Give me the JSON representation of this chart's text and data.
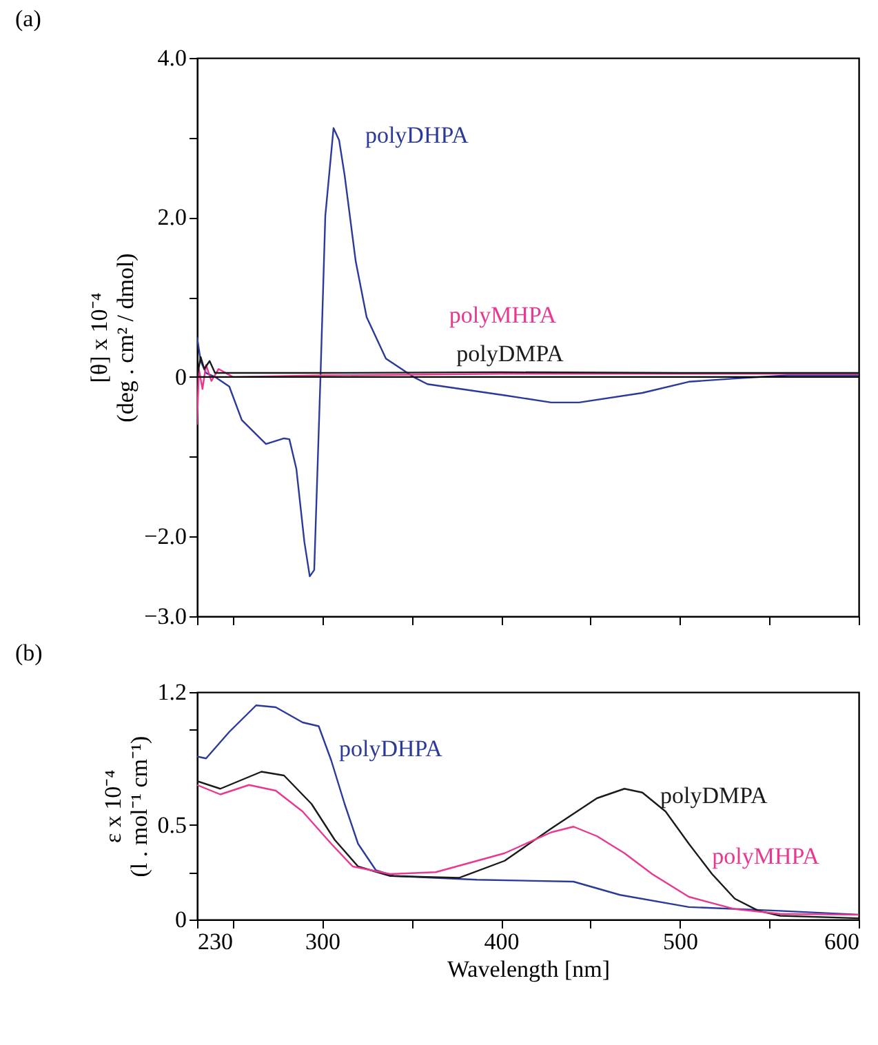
{
  "chart_data": [
    {
      "type": "line",
      "title": "(a)",
      "ylabel": "[θ] x 10⁻⁴\n(deg . cm² / dmol)",
      "xlim": [
        230,
        600
      ],
      "ylim": [
        -3,
        4
      ],
      "xticks": [
        230,
        {
          "value": 250,
          "label": null
        },
        300,
        {
          "value": 350,
          "label": null
        },
        400,
        {
          "value": 450,
          "label": null
        },
        500,
        {
          "value": 550,
          "label": null
        },
        600
      ],
      "yticks": [
        {
          "value": 4,
          "label": "4.0"
        },
        {
          "value": 3,
          "label": null
        },
        {
          "value": 2,
          "label": "2.0"
        },
        {
          "value": 1,
          "label": null
        },
        0,
        {
          "value": -1,
          "label": null
        },
        {
          "value": -2,
          "label": "−2.0"
        },
        {
          "value": -3,
          "label": "−3.0"
        }
      ],
      "tick_labels": "y",
      "grid": false,
      "legend": false,
      "ref_lines": [
        {
          "axis": "y",
          "value": 0,
          "color": "#000000"
        }
      ],
      "series": [
        {
          "name": "polyDHPA",
          "color": "#2b3a9a",
          "x": [
            230,
            232,
            235,
            240,
            248,
            255,
            268.5,
            278.6,
            281.6,
            285.5,
            290,
            293,
            295.5,
            299,
            301.7,
            306.3,
            309.4,
            312.5,
            318.7,
            324.8,
            335.6,
            351,
            358.8,
            402,
            428,
            443.6,
            479,
            505,
            530.7,
            560,
            600
          ],
          "values": [
            0.5,
            0.2,
            0.05,
            0,
            -0.12,
            -0.54,
            -0.84,
            -0.77,
            -0.78,
            -1.15,
            -2.07,
            -2.5,
            -2.42,
            0,
            2.02,
            3.12,
            2.97,
            2.53,
            1.45,
            0.75,
            0.23,
            0,
            -0.09,
            -0.23,
            -0.32,
            -0.32,
            -0.2,
            -0.06,
            -0.02,
            0.02,
            0.02
          ]
        },
        {
          "name": "polyMHPA",
          "color": "#e8388f",
          "x": [
            230,
            231,
            233,
            235,
            238,
            242,
            250,
            300,
            400,
            500,
            600
          ],
          "values": [
            -0.6,
            0.1,
            -0.15,
            0.15,
            -0.05,
            0.1,
            0,
            0.02,
            0.04,
            0.04,
            0.04
          ]
        },
        {
          "name": "polyDMPA",
          "color": "#1a1a1a",
          "x": [
            230,
            232,
            234,
            237,
            240,
            250,
            300,
            400,
            500,
            600
          ],
          "values": [
            0,
            0.25,
            0.1,
            0.2,
            0.05,
            0.05,
            0.05,
            0.06,
            0.05,
            0.05
          ]
        }
      ]
    },
    {
      "type": "line",
      "title": "(b)",
      "xlabel": "Wavelength [nm]",
      "ylabel": "ε x 10⁻⁴\n(l . mol⁻¹ cm⁻¹)",
      "xlim": [
        230,
        600
      ],
      "ylim": [
        0,
        1.2
      ],
      "xticks": [
        230,
        {
          "value": 250,
          "label": null
        },
        300,
        {
          "value": 350,
          "label": null
        },
        400,
        {
          "value": 450,
          "label": null
        },
        500,
        {
          "value": 550,
          "label": null
        },
        600
      ],
      "yticks": [
        0,
        {
          "value": 0.25,
          "label": null
        },
        0.5,
        {
          "value": 1,
          "label": null
        },
        1.2
      ],
      "grid": false,
      "legend": false,
      "series": [
        {
          "name": "polyDHPA",
          "color": "#2b3a9a",
          "x": [
            230,
            235,
            248,
            263,
            274,
            289,
            298,
            305,
            312.5,
            320,
            330,
            340,
            386.5,
            440.5,
            466.5,
            505,
            556,
            600
          ],
          "values": [
            0.86,
            0.85,
            0.99,
            1.13,
            1.12,
            1.04,
            1.02,
            0.84,
            0.61,
            0.4,
            0.26,
            0.23,
            0.21,
            0.2,
            0.13,
            0.066,
            0.046,
            0.026
          ]
        },
        {
          "name": "polyDMPA",
          "color": "#1a1a1a",
          "x": [
            230,
            243,
            266,
            278.6,
            294,
            307,
            320,
            338,
            376.5,
            402,
            428,
            453.6,
            469,
            479,
            492,
            505,
            518,
            530.7,
            544,
            556,
            600
          ],
          "values": [
            0.73,
            0.69,
            0.78,
            0.76,
            0.61,
            0.42,
            0.28,
            0.23,
            0.22,
            0.31,
            0.48,
            0.64,
            0.69,
            0.67,
            0.57,
            0.4,
            0.24,
            0.11,
            0.046,
            0.02,
            0.007
          ]
        },
        {
          "name": "polyMHPA",
          "color": "#e8388f",
          "x": [
            230,
            243,
            259,
            274,
            289,
            305,
            317,
            338,
            363.5,
            402,
            428,
            440.5,
            453.6,
            469,
            484.5,
            505,
            530.7,
            556,
            600
          ],
          "values": [
            0.71,
            0.66,
            0.71,
            0.68,
            0.57,
            0.4,
            0.28,
            0.24,
            0.25,
            0.35,
            0.46,
            0.49,
            0.44,
            0.35,
            0.24,
            0.12,
            0.055,
            0.03,
            0.025
          ]
        }
      ]
    }
  ]
}
